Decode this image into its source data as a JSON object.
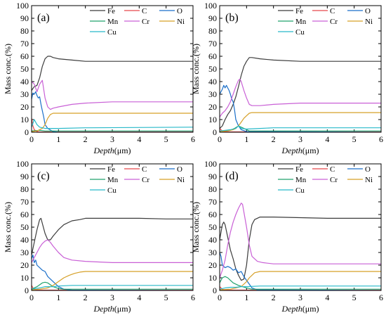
{
  "chart_data": [
    {
      "type": "line",
      "panel_label": "(a)",
      "xlabel": "Depth",
      "xlabel_unit": "(μm)",
      "ylabel": "Mass conc.(%)",
      "xlim": [
        0,
        6
      ],
      "ylim": [
        0,
        100
      ],
      "x_ticks": [
        "0",
        "1",
        "2",
        "3",
        "4",
        "5",
        "6"
      ],
      "y_ticks": [
        "0",
        "10",
        "20",
        "30",
        "40",
        "50",
        "60",
        "70",
        "80",
        "90",
        "100"
      ],
      "legend": "top-right",
      "series": [
        {
          "name": "Fe",
          "color": "#3c3c3c",
          "x": [
            0,
            0.1,
            0.2,
            0.3,
            0.4,
            0.5,
            0.6,
            0.7,
            0.8,
            1,
            1.5,
            2,
            3,
            4,
            5,
            6
          ],
          "y": [
            33,
            36,
            37,
            43,
            52,
            58,
            60,
            60,
            59,
            58,
            57,
            56,
            56,
            56,
            56,
            56
          ]
        },
        {
          "name": "C",
          "color": "#e8474c",
          "x": [
            0,
            0.05,
            0.1,
            0.2,
            0.3,
            6
          ],
          "y": [
            11,
            5,
            2,
            0.5,
            0.2,
            0.2
          ]
        },
        {
          "name": "O",
          "color": "#1b6fc9",
          "x": [
            0,
            0.05,
            0.1,
            0.15,
            0.2,
            0.25,
            0.3,
            0.35,
            0.4,
            0.45,
            0.5,
            0.6,
            0.8,
            1,
            6
          ],
          "y": [
            26,
            31,
            30,
            32,
            29,
            27,
            28,
            22,
            17,
            12,
            6,
            3,
            0.5,
            0,
            0
          ]
        },
        {
          "name": "Mn",
          "color": "#20a26e",
          "x": [
            0,
            0.3,
            0.5,
            1,
            6
          ],
          "y": [
            1,
            1.5,
            1,
            1,
            1
          ]
        },
        {
          "name": "Cr",
          "color": "#c960d6",
          "x": [
            0,
            0.1,
            0.2,
            0.3,
            0.4,
            0.5,
            0.6,
            0.7,
            0.8,
            1,
            1.5,
            2,
            3,
            4,
            5,
            6
          ],
          "y": [
            40,
            38,
            32,
            38,
            41,
            27,
            20,
            18,
            19,
            20,
            22,
            23,
            24,
            24,
            24,
            24
          ]
        },
        {
          "name": "Ni",
          "color": "#d6a028",
          "x": [
            0,
            0.2,
            0.4,
            0.5,
            0.6,
            0.7,
            0.8,
            1,
            2,
            3,
            4,
            5,
            6
          ],
          "y": [
            0.5,
            1,
            3,
            6,
            11,
            14,
            15,
            15,
            15,
            15,
            15,
            15,
            15
          ]
        },
        {
          "name": "Cu",
          "color": "#28b9c9",
          "x": [
            0,
            0.1,
            0.2,
            0.3,
            0.5,
            1,
            2,
            6
          ],
          "y": [
            4,
            10,
            6,
            4,
            3,
            3,
            3.5,
            4
          ]
        }
      ]
    },
    {
      "type": "line",
      "panel_label": "(b)",
      "xlabel": "Depth",
      "xlabel_unit": "(μm)",
      "ylabel": "Mass conc.(%)",
      "xlim": [
        0,
        6
      ],
      "ylim": [
        0,
        100
      ],
      "x_ticks": [
        "0",
        "1",
        "2",
        "3",
        "4",
        "5",
        "6"
      ],
      "y_ticks": [
        "0",
        "10",
        "20",
        "30",
        "40",
        "50",
        "60",
        "70",
        "80",
        "90",
        "100"
      ],
      "legend": "top-right",
      "series": [
        {
          "name": "Fe",
          "color": "#3c3c3c",
          "x": [
            0,
            0.1,
            0.2,
            0.3,
            0.4,
            0.5,
            0.6,
            0.7,
            0.8,
            0.9,
            1,
            1.1,
            1.2,
            1.5,
            2,
            3,
            4,
            5,
            6
          ],
          "y": [
            3,
            5,
            10,
            14,
            17,
            22,
            28,
            36,
            45,
            52,
            56,
            59,
            59,
            58,
            57,
            56,
            56,
            56,
            56
          ]
        },
        {
          "name": "C",
          "color": "#e8474c",
          "x": [
            0,
            0.05,
            0.1,
            0.2,
            6
          ],
          "y": [
            3,
            2,
            1,
            0.3,
            0.2
          ]
        },
        {
          "name": "O",
          "color": "#1b6fc9",
          "x": [
            0,
            0.1,
            0.15,
            0.2,
            0.25,
            0.3,
            0.35,
            0.4,
            0.45,
            0.5,
            0.55,
            0.6,
            0.7,
            0.8,
            1,
            6
          ],
          "y": [
            30,
            34,
            37,
            35,
            37,
            35,
            33,
            30,
            26,
            24,
            18,
            10,
            5,
            2,
            0.5,
            0
          ]
        },
        {
          "name": "Mn",
          "color": "#20a26e",
          "x": [
            0,
            0.4,
            0.55,
            0.7,
            0.9,
            1.1,
            6
          ],
          "y": [
            0.5,
            1.5,
            3,
            5,
            3,
            1,
            1
          ]
        },
        {
          "name": "Cr",
          "color": "#c960d6",
          "x": [
            0,
            0.1,
            0.2,
            0.3,
            0.4,
            0.5,
            0.6,
            0.7,
            0.75,
            0.8,
            0.9,
            1,
            1.1,
            1.2,
            1.5,
            2,
            3,
            4,
            5,
            6
          ],
          "y": [
            12,
            15,
            17,
            20,
            24,
            30,
            36,
            41,
            42,
            40,
            33,
            27,
            22,
            21,
            21,
            22,
            23,
            23,
            23,
            23
          ]
        },
        {
          "name": "Ni",
          "color": "#d6a028",
          "x": [
            0,
            0.3,
            0.5,
            0.6,
            0.7,
            0.8,
            0.9,
            1,
            1.1,
            1.2,
            1.5,
            2,
            3,
            4,
            5,
            6
          ],
          "y": [
            0.5,
            1,
            2,
            3,
            5,
            8,
            11,
            13,
            15,
            15.5,
            15.5,
            15.5,
            15.5,
            15.5,
            15.5,
            15.5
          ]
        },
        {
          "name": "Cu",
          "color": "#28b9c9",
          "x": [
            0,
            0.2,
            0.4,
            0.6,
            0.7,
            0.8,
            1,
            1.5,
            2,
            3,
            6
          ],
          "y": [
            1,
            1.5,
            2,
            3,
            5,
            3,
            2.5,
            3,
            3.5,
            3.5,
            3.5
          ]
        }
      ]
    },
    {
      "type": "line",
      "panel_label": "(c)",
      "xlabel": "Depth",
      "xlabel_unit": "(μm)",
      "ylabel": "Mass conc.(%)",
      "xlim": [
        0,
        6
      ],
      "ylim": [
        0,
        100
      ],
      "x_ticks": [
        "0",
        "1",
        "2",
        "3",
        "4",
        "5",
        "6"
      ],
      "y_ticks": [
        "0",
        "10",
        "20",
        "30",
        "40",
        "50",
        "60",
        "70",
        "80",
        "90",
        "100"
      ],
      "legend": "top-right",
      "series": [
        {
          "name": "Fe",
          "color": "#3c3c3c",
          "x": [
            0,
            0.1,
            0.2,
            0.3,
            0.35,
            0.4,
            0.5,
            0.6,
            0.7,
            0.8,
            1,
            1.2,
            1.5,
            1.8,
            2,
            3,
            4,
            5,
            6
          ],
          "y": [
            28,
            38,
            48,
            56,
            57,
            53,
            45,
            40,
            40,
            43,
            48,
            52,
            55,
            56,
            57,
            57,
            57,
            56.5,
            56.5
          ]
        },
        {
          "name": "C",
          "color": "#e8474c",
          "x": [
            0,
            0.05,
            0.1,
            0.2,
            6
          ],
          "y": [
            4,
            2,
            1,
            0.3,
            0.2
          ]
        },
        {
          "name": "O",
          "color": "#1b6fc9",
          "x": [
            0,
            0.05,
            0.1,
            0.15,
            0.2,
            0.3,
            0.4,
            0.5,
            0.6,
            0.8,
            1,
            1.2,
            1.5,
            6
          ],
          "y": [
            25,
            28,
            22,
            24,
            20,
            18,
            16,
            15,
            11,
            7,
            3,
            1,
            0.3,
            0
          ]
        },
        {
          "name": "Mn",
          "color": "#20a26e",
          "x": [
            0,
            0.2,
            0.4,
            0.5,
            0.6,
            0.8,
            1,
            1.2,
            6
          ],
          "y": [
            1,
            3,
            6,
            6.5,
            6,
            3,
            1.5,
            1,
            1
          ]
        },
        {
          "name": "Cr",
          "color": "#c960d6",
          "x": [
            0,
            0.1,
            0.2,
            0.3,
            0.4,
            0.5,
            0.6,
            0.7,
            0.8,
            1,
            1.2,
            1.5,
            2,
            3,
            4,
            5,
            6
          ],
          "y": [
            22,
            26,
            30,
            34,
            37,
            39,
            40,
            38,
            35,
            30,
            26,
            24,
            23,
            22,
            22,
            22,
            22
          ]
        },
        {
          "name": "Ni",
          "color": "#d6a028",
          "x": [
            0,
            0.3,
            0.6,
            0.8,
            1,
            1.2,
            1.4,
            1.6,
            1.8,
            2,
            3,
            4,
            5,
            6
          ],
          "y": [
            0.5,
            1,
            2,
            4,
            7,
            10,
            12,
            13.5,
            14.5,
            15,
            15,
            15,
            15,
            15
          ]
        },
        {
          "name": "Cu",
          "color": "#28b9c9",
          "x": [
            0,
            0.3,
            0.5,
            0.8,
            1,
            1.5,
            2,
            6
          ],
          "y": [
            1,
            2,
            3,
            3,
            3.5,
            4,
            4,
            4
          ]
        }
      ]
    },
    {
      "type": "line",
      "panel_label": "(d)",
      "xlabel": "Depth",
      "xlabel_unit": "(μm)",
      "ylabel": "Mass conc.(%)",
      "xlim": [
        0,
        6
      ],
      "ylim": [
        0,
        100
      ],
      "x_ticks": [
        "0",
        "1",
        "2",
        "3",
        "4",
        "5",
        "6"
      ],
      "y_ticks": [
        "0",
        "10",
        "20",
        "30",
        "40",
        "50",
        "60",
        "70",
        "80",
        "90",
        "100"
      ],
      "legend": "top-right",
      "series": [
        {
          "name": "Fe",
          "color": "#3c3c3c",
          "x": [
            0,
            0.1,
            0.15,
            0.2,
            0.3,
            0.4,
            0.5,
            0.6,
            0.7,
            0.8,
            0.9,
            1,
            1.1,
            1.2,
            1.3,
            1.5,
            2,
            3,
            4,
            5,
            6
          ],
          "y": [
            40,
            52,
            54,
            52,
            42,
            32,
            25,
            17,
            12,
            8,
            9,
            20,
            40,
            52,
            56,
            58,
            58,
            57.5,
            57,
            57,
            57
          ]
        },
        {
          "name": "C",
          "color": "#e8474c",
          "x": [
            0,
            0.05,
            0.1,
            0.2,
            6
          ],
          "y": [
            3,
            2,
            1,
            0.3,
            0.2
          ]
        },
        {
          "name": "O",
          "color": "#1b6fc9",
          "x": [
            0,
            0.05,
            0.1,
            0.2,
            0.3,
            0.4,
            0.5,
            0.6,
            0.7,
            0.8,
            0.9,
            1,
            1.1,
            1.2,
            1.4,
            6
          ],
          "y": [
            30,
            27,
            20,
            18,
            19,
            18,
            16,
            17,
            14,
            15,
            11,
            8,
            5,
            2,
            0.5,
            0
          ]
        },
        {
          "name": "Mn",
          "color": "#20a26e",
          "x": [
            0,
            0.1,
            0.2,
            0.3,
            0.4,
            0.5,
            0.7,
            1,
            1.2,
            6
          ],
          "y": [
            6,
            10,
            11,
            10,
            8,
            6,
            4,
            2,
            1,
            1
          ]
        },
        {
          "name": "Cr",
          "color": "#c960d6",
          "x": [
            0,
            0.1,
            0.2,
            0.3,
            0.4,
            0.5,
            0.6,
            0.7,
            0.8,
            0.85,
            0.9,
            1,
            1.1,
            1.2,
            1.4,
            1.6,
            2,
            3,
            4,
            5,
            6
          ],
          "y": [
            10,
            16,
            24,
            36,
            46,
            54,
            60,
            65,
            69,
            68,
            62,
            50,
            36,
            27,
            23,
            22,
            21,
            21,
            21,
            21,
            21
          ]
        },
        {
          "name": "Ni",
          "color": "#d6a028",
          "x": [
            0,
            0.4,
            0.6,
            0.8,
            0.9,
            1,
            1.1,
            1.2,
            1.3,
            1.5,
            2,
            3,
            4,
            5,
            6
          ],
          "y": [
            0.5,
            1,
            2,
            3,
            5,
            7,
            10,
            12,
            14,
            15,
            15,
            15,
            15,
            15,
            15
          ]
        },
        {
          "name": "Cu",
          "color": "#28b9c9",
          "x": [
            0,
            0.2,
            0.4,
            0.6,
            0.8,
            1,
            1.5,
            2,
            6
          ],
          "y": [
            1,
            2,
            2.5,
            2.5,
            3,
            3,
            3.5,
            3.5,
            3.5
          ]
        }
      ]
    }
  ]
}
